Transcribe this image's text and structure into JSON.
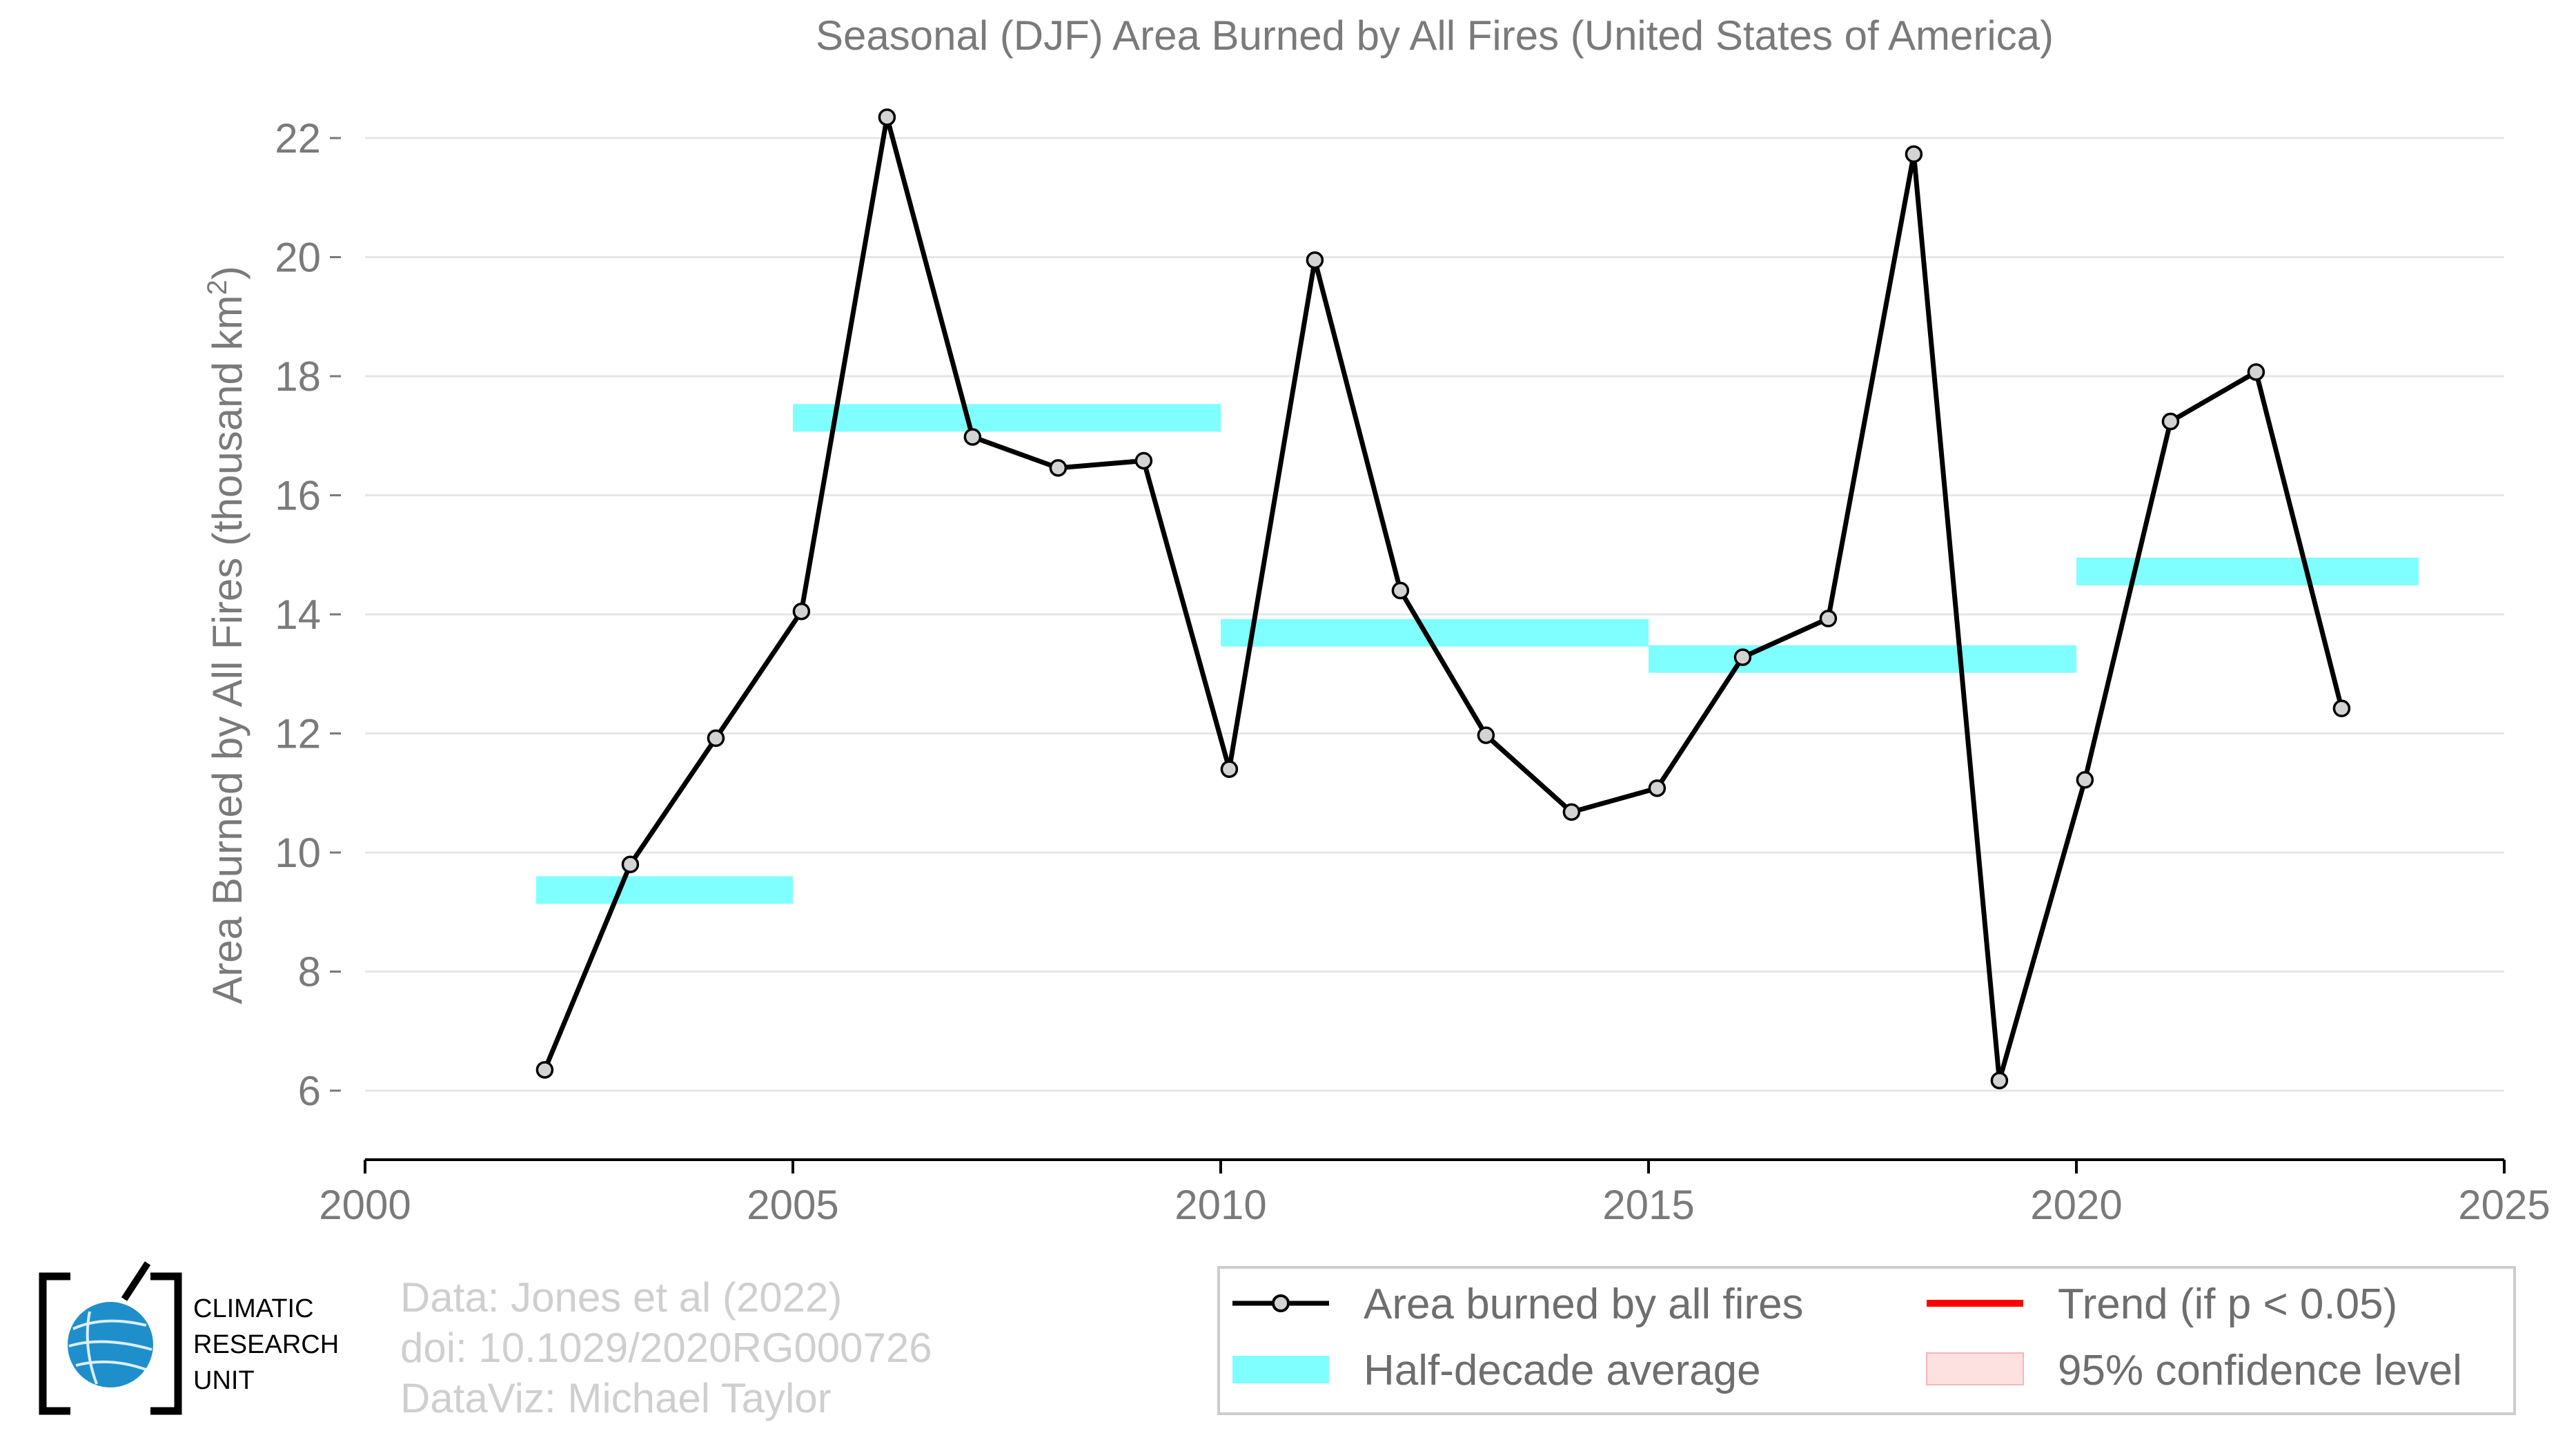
{
  "chart_data": {
    "type": "line",
    "title": "Seasonal (DJF) Area Burned by All Fires (United States of America)",
    "ylabel": "Area Burned by All Fires (thousand km",
    "ylabel_sup": "2",
    "ylabel_end": ")",
    "xlim": [
      2000,
      2025
    ],
    "ylim": [
      6,
      22
    ],
    "xticks": [
      2000,
      2005,
      2010,
      2015,
      2020,
      2025
    ],
    "yticks": [
      6,
      8,
      10,
      12,
      14,
      16,
      18,
      20,
      22
    ],
    "grid": true,
    "series": [
      {
        "name": "Area burned by all fires",
        "color": "#000000",
        "marker_fill": "#d3d3d3",
        "x": [
          2002.1,
          2003.1,
          2004.1,
          2005.1,
          2006.1,
          2007.1,
          2008.1,
          2009.1,
          2010.1,
          2011.1,
          2012.1,
          2013.1,
          2014.1,
          2015.1,
          2016.1,
          2017.1,
          2018.1,
          2019.1,
          2020.1,
          2021.1,
          2022.1,
          2023.1
        ],
        "y": [
          6.35,
          9.8,
          11.92,
          14.05,
          22.35,
          16.98,
          16.46,
          16.58,
          11.4,
          19.95,
          14.4,
          11.97,
          10.68,
          11.08,
          13.28,
          13.93,
          21.73,
          6.17,
          11.22,
          17.24,
          18.07,
          12.42
        ]
      }
    ],
    "half_decade_average": {
      "name": "Half-decade average",
      "color": "#7fffff",
      "bands": [
        {
          "x0": 2002,
          "x1": 2005,
          "y": 9.37
        },
        {
          "x0": 2005,
          "x1": 2010,
          "y": 17.3
        },
        {
          "x0": 2010,
          "x1": 2015,
          "y": 13.69
        },
        {
          "x0": 2015,
          "x1": 2020,
          "y": 13.25
        },
        {
          "x0": 2020,
          "x1": 2024,
          "y": 14.72
        }
      ]
    },
    "legend": {
      "placement": "bottom-right",
      "entries": [
        {
          "label": "Area burned by all fires",
          "style": "line-marker",
          "color": "#000000"
        },
        {
          "label": "Trend (if p < 0.05)",
          "style": "line",
          "color": "#ff0000"
        },
        {
          "label": "Half-decade average",
          "style": "band",
          "color": "#7fffff"
        },
        {
          "label": "95% confidence level",
          "style": "patch",
          "color": "#fde0e0"
        }
      ]
    }
  },
  "credits": {
    "line1": "Data: Jones et al (2022)",
    "line2": "doi: 10.1029/2020RG000726",
    "line3": "DataViz: Michael Taylor"
  },
  "logo": {
    "line1": "CLIMATIC",
    "line2": "RESEARCH",
    "line3": "UNIT",
    "globe_color": "#1f8fcc"
  }
}
